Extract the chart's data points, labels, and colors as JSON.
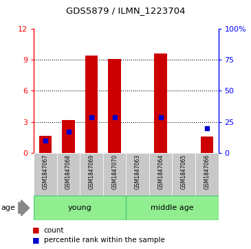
{
  "title": "GDS5879 / ILMN_1223704",
  "samples": [
    "GSM1847067",
    "GSM1847068",
    "GSM1847069",
    "GSM1847070",
    "GSM1847063",
    "GSM1847064",
    "GSM1847065",
    "GSM1847066"
  ],
  "count_values": [
    1.7,
    3.2,
    9.4,
    9.1,
    0.02,
    9.6,
    0.02,
    1.6
  ],
  "percentile_values": [
    10.0,
    17.0,
    29.0,
    29.0,
    0.0,
    29.0,
    0.0,
    20.0
  ],
  "ylim_left": [
    0,
    12
  ],
  "ylim_right": [
    0,
    100
  ],
  "yticks_left": [
    0,
    3,
    6,
    9,
    12
  ],
  "yticks_right": [
    0,
    25,
    50,
    75,
    100
  ],
  "bar_color": "#CC0000",
  "marker_color": "#0000CC",
  "bar_width": 0.55,
  "bg_color": "#ffffff",
  "grid_color": "black",
  "label_count": "count",
  "label_percentile": "percentile rank within the sample",
  "age_label": "age",
  "group_box_color": "#c8c8c8",
  "young_group": {
    "label": "young",
    "indices": [
      0,
      1,
      2,
      3
    ]
  },
  "middle_group": {
    "label": "middle age",
    "indices": [
      4,
      5,
      6,
      7
    ]
  },
  "group_color": "#90EE90",
  "group_border_color": "#50C878"
}
